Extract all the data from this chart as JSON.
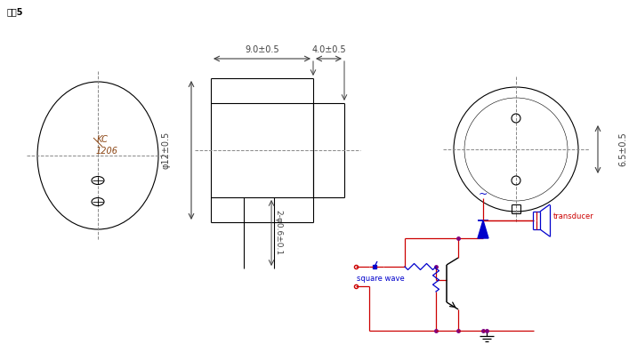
{
  "title_text": "封袅5",
  "bg_color": "#ffffff",
  "dim_color": "#404040",
  "line_color": "#000000",
  "red_color": "#cc0000",
  "blue_color": "#0000cc",
  "purple_color": "#800080",
  "dim_label_9": "9.0±0.5",
  "dim_label_4": "4.0±0.5",
  "dim_label_12": "φ12±0.5",
  "dim_label_pin": "2-φ0.6±0.1",
  "dim_label_65": "6.5±0.5",
  "label_kc": "KC-1206",
  "label_transducer": "transducer",
  "label_square": "square wave"
}
